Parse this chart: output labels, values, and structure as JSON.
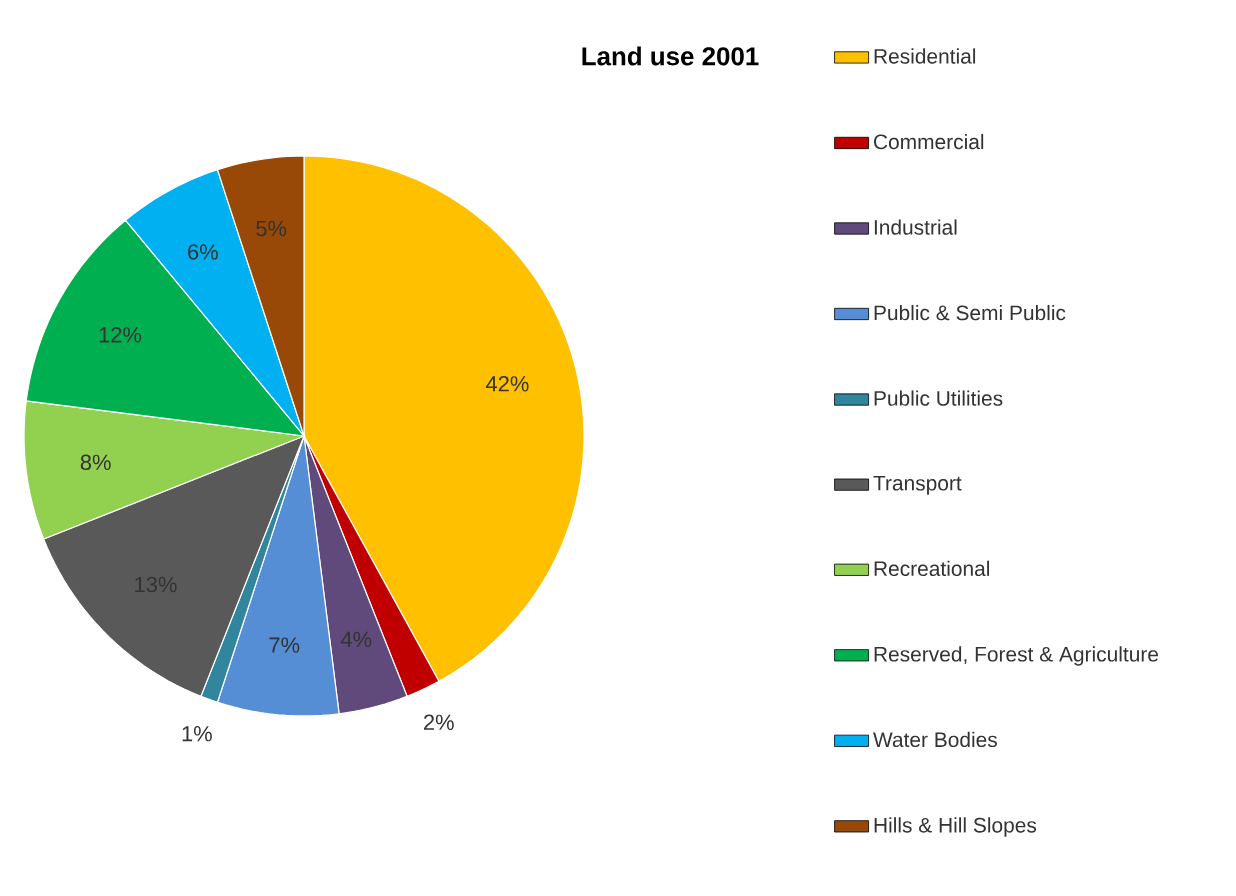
{
  "chart_data": {
    "type": "pie",
    "title": "Land use 2001",
    "categories": [
      "Residential",
      "Commercial",
      "Industrial",
      "Public & Semi Public",
      "Public Utilities",
      "Transport",
      "Recreational",
      "Reserved, Forest & Agriculture",
      "Water Bodies",
      "Hills & Hill Slopes"
    ],
    "values": [
      42,
      2,
      4,
      7,
      1,
      13,
      8,
      12,
      6,
      5
    ],
    "colors": [
      "#ffc000",
      "#c00000",
      "#604a7b",
      "#558ed5",
      "#31859c",
      "#595959",
      "#92d050",
      "#00b050",
      "#00b0f0",
      "#984807"
    ],
    "value_labels": [
      "42%",
      "2%",
      "4%",
      "7%",
      "1%",
      "13%",
      "8%",
      "12%",
      "6%",
      "5%"
    ],
    "legend": "right"
  }
}
